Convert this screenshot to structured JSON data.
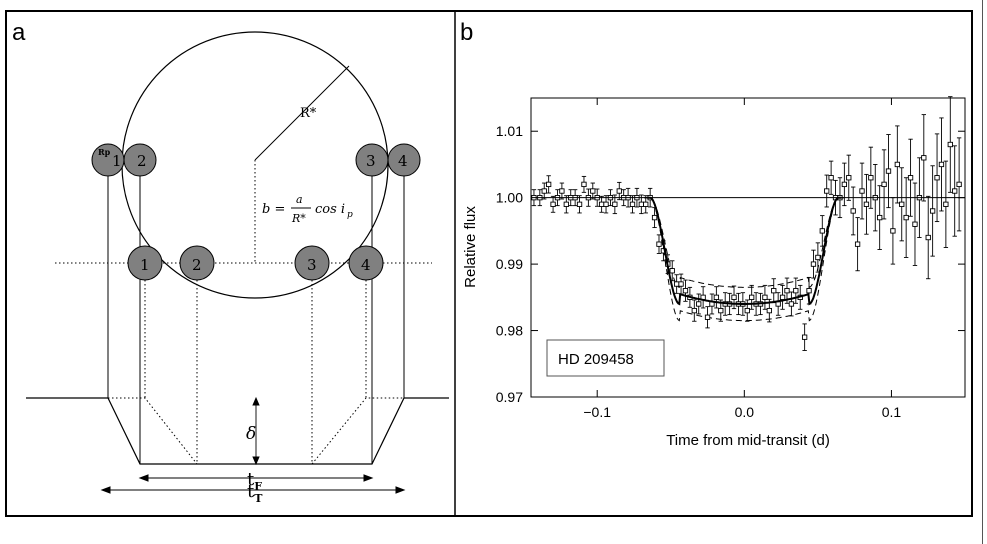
{
  "panels": {
    "a": {
      "label": "a",
      "star_radius_label": "R*",
      "planet_radius_label": "Rp",
      "impact_formula": {
        "lhs": "b =",
        "num": "a",
        "den": "R*",
        "rhs": "cos i",
        "sub": "p"
      },
      "upper_contacts": [
        "1",
        "2",
        "3",
        "4"
      ],
      "lower_contacts": [
        "1",
        "2",
        "3",
        "4"
      ],
      "depth_label": "δ",
      "tF": {
        "main": "t",
        "sub": "F"
      },
      "tT": {
        "main": "t",
        "sub": "T"
      }
    },
    "b": {
      "label": "b",
      "legend_label": "HD 209458"
    }
  },
  "chart_data": {
    "type": "scatter",
    "xlabel": "Time from mid-transit (d)",
    "ylabel": "Relative flux",
    "xlim": [
      -0.145,
      0.15
    ],
    "ylim": [
      0.97,
      1.015
    ],
    "xticks": [
      -0.1,
      0.0,
      0.1
    ],
    "xtick_labels": [
      "−0.1",
      "0.0",
      "0.1"
    ],
    "yticks": [
      0.97,
      0.98,
      0.99,
      1.0,
      1.01
    ],
    "ytick_labels": [
      "0.97",
      "0.98",
      "0.99",
      "1.00",
      "1.01"
    ],
    "legend": "HD 209458",
    "grid": false,
    "model": {
      "t1": -0.064,
      "t2": -0.044,
      "t3": 0.044,
      "t4": 0.064,
      "depth": 0.016,
      "band": 0.0025
    },
    "series": [
      {
        "x": [
          -0.143,
          -0.139,
          -0.136,
          -0.133,
          -0.13,
          -0.127,
          -0.124,
          -0.121,
          -0.118,
          -0.115,
          -0.112,
          -0.109,
          -0.106,
          -0.103,
          -0.1,
          -0.097,
          -0.094,
          -0.091,
          -0.088,
          -0.085,
          -0.082,
          -0.079,
          -0.076,
          -0.073,
          -0.07,
          -0.067,
          -0.064,
          -0.061,
          -0.058,
          -0.055,
          -0.052,
          -0.049,
          -0.046,
          -0.043,
          -0.04,
          -0.037,
          -0.034,
          -0.031,
          -0.028,
          -0.025,
          -0.022,
          -0.019,
          -0.016,
          -0.013,
          -0.01,
          -0.007,
          -0.004,
          -0.001,
          0.002,
          0.005,
          0.008,
          0.011,
          0.014,
          0.017,
          0.02,
          0.023,
          0.026,
          0.029,
          0.032,
          0.035,
          0.038,
          0.041,
          0.044,
          0.047,
          0.05,
          0.053,
          0.056,
          0.059,
          0.062,
          0.065,
          0.068,
          0.071,
          0.074,
          0.077,
          0.08,
          0.083,
          0.086,
          0.089,
          0.092,
          0.095,
          0.098,
          0.101,
          0.104,
          0.107,
          0.11,
          0.113,
          0.116,
          0.119,
          0.122,
          0.125,
          0.128,
          0.131,
          0.134,
          0.137,
          0.14,
          0.143,
          0.146
        ],
        "y": [
          1.0,
          1.0,
          1.001,
          1.002,
          0.999,
          1.0,
          1.001,
          0.999,
          1.0,
          1.0,
          0.999,
          1.002,
          1.0,
          1.001,
          1.0,
          0.999,
          0.999,
          1.0,
          0.999,
          1.001,
          1.0,
          1.0,
          0.999,
          1.0,
          0.999,
          0.999,
          1.0,
          0.997,
          0.993,
          0.992,
          0.99,
          0.989,
          0.987,
          0.987,
          0.986,
          0.985,
          0.983,
          0.984,
          0.985,
          0.982,
          0.984,
          0.985,
          0.983,
          0.984,
          0.984,
          0.985,
          0.984,
          0.984,
          0.983,
          0.985,
          0.984,
          0.984,
          0.985,
          0.983,
          0.986,
          0.984,
          0.985,
          0.986,
          0.984,
          0.986,
          0.985,
          0.979,
          0.986,
          0.99,
          0.991,
          0.995,
          1.001,
          1.003,
          1.0,
          1.0,
          1.002,
          1.003,
          0.998,
          0.993,
          1.001,
          0.999,
          1.003,
          1.0,
          0.997,
          1.002,
          1.004,
          0.995,
          1.005,
          0.999,
          0.997,
          1.003,
          0.996,
          1.0,
          1.006,
          0.994,
          0.998,
          1.003,
          1.005,
          0.999,
          1.008,
          1.001,
          1.002
        ],
        "err": [
          0.0012,
          0.0012,
          0.0012,
          0.0013,
          0.0012,
          0.0012,
          0.0012,
          0.0013,
          0.0012,
          0.0012,
          0.0013,
          0.0012,
          0.0013,
          0.0012,
          0.0013,
          0.0012,
          0.0013,
          0.0012,
          0.0014,
          0.0013,
          0.0012,
          0.0014,
          0.0013,
          0.0014,
          0.0014,
          0.0013,
          0.0014,
          0.0015,
          0.0014,
          0.0015,
          0.0014,
          0.0015,
          0.0014,
          0.0015,
          0.0016,
          0.0015,
          0.0016,
          0.0015,
          0.0016,
          0.0016,
          0.0015,
          0.0016,
          0.0016,
          0.0017,
          0.0016,
          0.0017,
          0.0016,
          0.0017,
          0.0016,
          0.0018,
          0.0017,
          0.0016,
          0.0018,
          0.0017,
          0.0018,
          0.0017,
          0.0018,
          0.0019,
          0.0018,
          0.0019,
          0.0018,
          0.002,
          0.002,
          0.0021,
          0.0022,
          0.0023,
          0.0024,
          0.0025,
          0.0026,
          0.003,
          0.0032,
          0.0034,
          0.0036,
          0.004,
          0.0042,
          0.0045,
          0.0046,
          0.005,
          0.0048,
          0.0052,
          0.0055,
          0.005,
          0.0058,
          0.0055,
          0.006,
          0.0058,
          0.0062,
          0.006,
          0.0065,
          0.0062,
          0.0068,
          0.0066,
          0.007,
          0.0065,
          0.0072,
          0.0068,
          0.007
        ]
      }
    ]
  }
}
